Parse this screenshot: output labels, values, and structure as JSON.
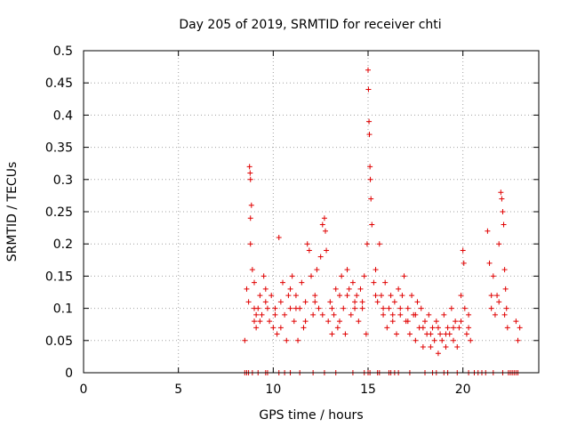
{
  "chart_data": {
    "type": "scatter",
    "title": "Day 205 of 2019, SRMTID for receiver chti",
    "xlabel": "GPS time / hours",
    "ylabel": "SRMTID / TECUs",
    "xlim": [
      0,
      24
    ],
    "ylim": [
      0,
      0.5
    ],
    "x_ticks": [
      "0",
      "5",
      "10",
      "15",
      "20"
    ],
    "x_tick_values": [
      0,
      5,
      10,
      15,
      20
    ],
    "y_ticks": [
      "0",
      "0.05",
      "0.1",
      "0.15",
      "0.2",
      "0.25",
      "0.3",
      "0.35",
      "0.4",
      "0.45",
      "0.5"
    ],
    "y_tick_values": [
      0,
      0.05,
      0.1,
      0.15,
      0.2,
      0.25,
      0.3,
      0.35,
      0.4,
      0.45,
      0.5
    ],
    "grid": true,
    "marker": "+",
    "series": [
      {
        "name": "SRMTID",
        "color": "#e00000",
        "points": [
          [
            8.5,
            0.0
          ],
          [
            8.6,
            0.0
          ],
          [
            8.7,
            0.0
          ],
          [
            8.9,
            0.0
          ],
          [
            9.2,
            0.0
          ],
          [
            9.6,
            0.0
          ],
          [
            9.7,
            0.0
          ],
          [
            10.3,
            0.0
          ],
          [
            10.6,
            0.0
          ],
          [
            10.9,
            0.0
          ],
          [
            11.4,
            0.0
          ],
          [
            12.1,
            0.0
          ],
          [
            12.7,
            0.0
          ],
          [
            13.3,
            0.0
          ],
          [
            14.2,
            0.0
          ],
          [
            14.8,
            0.0
          ],
          [
            15.0,
            0.0
          ],
          [
            15.1,
            0.0
          ],
          [
            15.5,
            0.0
          ],
          [
            15.6,
            0.0
          ],
          [
            16.1,
            0.0
          ],
          [
            16.2,
            0.0
          ],
          [
            16.4,
            0.0
          ],
          [
            16.6,
            0.0
          ],
          [
            17.2,
            0.0
          ],
          [
            18.0,
            0.0
          ],
          [
            18.4,
            0.0
          ],
          [
            18.6,
            0.0
          ],
          [
            19.0,
            0.0
          ],
          [
            19.2,
            0.0
          ],
          [
            19.7,
            0.0
          ],
          [
            20.3,
            0.0
          ],
          [
            20.6,
            0.0
          ],
          [
            20.8,
            0.0
          ],
          [
            21.0,
            0.0
          ],
          [
            21.2,
            0.0
          ],
          [
            21.6,
            0.0
          ],
          [
            22.1,
            0.0
          ],
          [
            22.4,
            0.0
          ],
          [
            22.5,
            0.0
          ],
          [
            22.6,
            0.0
          ],
          [
            22.7,
            0.0
          ],
          [
            22.8,
            0.0
          ],
          [
            22.9,
            0.0
          ],
          [
            8.5,
            0.05
          ],
          [
            8.6,
            0.13
          ],
          [
            8.7,
            0.11
          ],
          [
            8.75,
            0.32
          ],
          [
            8.78,
            0.31
          ],
          [
            8.8,
            0.3
          ],
          [
            8.85,
            0.26
          ],
          [
            8.8,
            0.24
          ],
          [
            8.8,
            0.2
          ],
          [
            8.9,
            0.16
          ],
          [
            9.0,
            0.14
          ],
          [
            9.0,
            0.08
          ],
          [
            9.1,
            0.07
          ],
          [
            9.2,
            0.1
          ],
          [
            9.3,
            0.12
          ],
          [
            9.4,
            0.09
          ],
          [
            9.5,
            0.15
          ],
          [
            9.6,
            0.13
          ],
          [
            9.7,
            0.1
          ],
          [
            9.8,
            0.08
          ],
          [
            9.9,
            0.12
          ],
          [
            10.0,
            0.07
          ],
          [
            10.1,
            0.1
          ],
          [
            10.2,
            0.06
          ],
          [
            10.3,
            0.21
          ],
          [
            10.4,
            0.11
          ],
          [
            10.5,
            0.14
          ],
          [
            10.6,
            0.09
          ],
          [
            10.7,
            0.05
          ],
          [
            10.8,
            0.12
          ],
          [
            10.9,
            0.1
          ],
          [
            11.0,
            0.15
          ],
          [
            11.1,
            0.08
          ],
          [
            11.2,
            0.12
          ],
          [
            11.3,
            0.05
          ],
          [
            11.4,
            0.1
          ],
          [
            11.5,
            0.14
          ],
          [
            11.6,
            0.07
          ],
          [
            11.7,
            0.11
          ],
          [
            11.8,
            0.2
          ],
          [
            11.9,
            0.19
          ],
          [
            12.0,
            0.15
          ],
          [
            12.1,
            0.09
          ],
          [
            12.2,
            0.12
          ],
          [
            12.3,
            0.16
          ],
          [
            12.4,
            0.1
          ],
          [
            12.5,
            0.18
          ],
          [
            12.6,
            0.23
          ],
          [
            12.7,
            0.24
          ],
          [
            12.75,
            0.22
          ],
          [
            12.8,
            0.19
          ],
          [
            12.9,
            0.08
          ],
          [
            13.0,
            0.11
          ],
          [
            13.1,
            0.06
          ],
          [
            13.2,
            0.09
          ],
          [
            13.3,
            0.13
          ],
          [
            13.4,
            0.07
          ],
          [
            13.5,
            0.12
          ],
          [
            13.6,
            0.15
          ],
          [
            13.7,
            0.1
          ],
          [
            13.8,
            0.06
          ],
          [
            13.9,
            0.16
          ],
          [
            14.0,
            0.13
          ],
          [
            14.1,
            0.09
          ],
          [
            14.2,
            0.14
          ],
          [
            14.3,
            0.11
          ],
          [
            14.4,
            0.12
          ],
          [
            14.5,
            0.08
          ],
          [
            14.6,
            0.13
          ],
          [
            14.7,
            0.1
          ],
          [
            14.8,
            0.15
          ],
          [
            14.9,
            0.06
          ],
          [
            14.95,
            0.2
          ],
          [
            15.0,
            0.47
          ],
          [
            15.02,
            0.44
          ],
          [
            15.05,
            0.39
          ],
          [
            15.07,
            0.37
          ],
          [
            15.1,
            0.32
          ],
          [
            15.12,
            0.3
          ],
          [
            15.15,
            0.27
          ],
          [
            15.2,
            0.23
          ],
          [
            15.3,
            0.14
          ],
          [
            15.4,
            0.16
          ],
          [
            15.5,
            0.11
          ],
          [
            15.6,
            0.2
          ],
          [
            15.7,
            0.12
          ],
          [
            15.8,
            0.09
          ],
          [
            15.9,
            0.14
          ],
          [
            16.0,
            0.07
          ],
          [
            16.1,
            0.1
          ],
          [
            16.2,
            0.12
          ],
          [
            16.3,
            0.08
          ],
          [
            16.4,
            0.11
          ],
          [
            16.5,
            0.06
          ],
          [
            16.6,
            0.13
          ],
          [
            16.7,
            0.09
          ],
          [
            16.8,
            0.12
          ],
          [
            16.9,
            0.15
          ],
          [
            17.0,
            0.08
          ],
          [
            17.1,
            0.1
          ],
          [
            17.2,
            0.06
          ],
          [
            17.3,
            0.12
          ],
          [
            17.4,
            0.09
          ],
          [
            17.5,
            0.05
          ],
          [
            17.6,
            0.11
          ],
          [
            17.7,
            0.07
          ],
          [
            17.8,
            0.1
          ],
          [
            17.9,
            0.04
          ],
          [
            18.0,
            0.08
          ],
          [
            18.1,
            0.06
          ],
          [
            18.2,
            0.09
          ],
          [
            18.3,
            0.04
          ],
          [
            18.4,
            0.07
          ],
          [
            18.5,
            0.05
          ],
          [
            18.6,
            0.08
          ],
          [
            18.7,
            0.03
          ],
          [
            18.8,
            0.06
          ],
          [
            18.9,
            0.05
          ],
          [
            19.0,
            0.09
          ],
          [
            19.1,
            0.04
          ],
          [
            19.2,
            0.07
          ],
          [
            19.3,
            0.06
          ],
          [
            19.4,
            0.1
          ],
          [
            19.5,
            0.05
          ],
          [
            19.6,
            0.08
          ],
          [
            19.7,
            0.04
          ],
          [
            19.8,
            0.07
          ],
          [
            19.9,
            0.12
          ],
          [
            20.0,
            0.19
          ],
          [
            20.05,
            0.17
          ],
          [
            20.1,
            0.1
          ],
          [
            20.2,
            0.06
          ],
          [
            20.3,
            0.09
          ],
          [
            20.4,
            0.05
          ],
          [
            21.3,
            0.22
          ],
          [
            21.4,
            0.17
          ],
          [
            21.5,
            0.12
          ],
          [
            21.6,
            0.15
          ],
          [
            21.7,
            0.09
          ],
          [
            21.8,
            0.12
          ],
          [
            21.9,
            0.2
          ],
          [
            22.0,
            0.28
          ],
          [
            22.05,
            0.27
          ],
          [
            22.1,
            0.25
          ],
          [
            22.15,
            0.23
          ],
          [
            22.2,
            0.16
          ],
          [
            22.25,
            0.13
          ],
          [
            22.3,
            0.1
          ],
          [
            22.35,
            0.07
          ],
          [
            22.8,
            0.08
          ],
          [
            22.9,
            0.05
          ],
          [
            23.0,
            0.07
          ],
          [
            9.0,
            0.1
          ],
          [
            9.1,
            0.09
          ],
          [
            9.3,
            0.08
          ],
          [
            9.6,
            0.11
          ],
          [
            10.1,
            0.09
          ],
          [
            10.4,
            0.07
          ],
          [
            10.9,
            0.13
          ],
          [
            11.2,
            0.1
          ],
          [
            11.7,
            0.08
          ],
          [
            12.2,
            0.11
          ],
          [
            12.6,
            0.09
          ],
          [
            13.1,
            0.1
          ],
          [
            13.5,
            0.08
          ],
          [
            13.9,
            0.12
          ],
          [
            14.3,
            0.1
          ],
          [
            14.7,
            0.11
          ],
          [
            15.4,
            0.12
          ],
          [
            15.8,
            0.1
          ],
          [
            16.3,
            0.09
          ],
          [
            16.7,
            0.1
          ],
          [
            17.1,
            0.08
          ],
          [
            17.5,
            0.09
          ],
          [
            17.9,
            0.07
          ],
          [
            18.3,
            0.06
          ],
          [
            18.7,
            0.07
          ],
          [
            19.1,
            0.06
          ],
          [
            19.5,
            0.07
          ],
          [
            19.9,
            0.08
          ],
          [
            20.3,
            0.07
          ],
          [
            21.5,
            0.1
          ],
          [
            21.9,
            0.11
          ],
          [
            22.2,
            0.09
          ]
        ]
      }
    ]
  }
}
